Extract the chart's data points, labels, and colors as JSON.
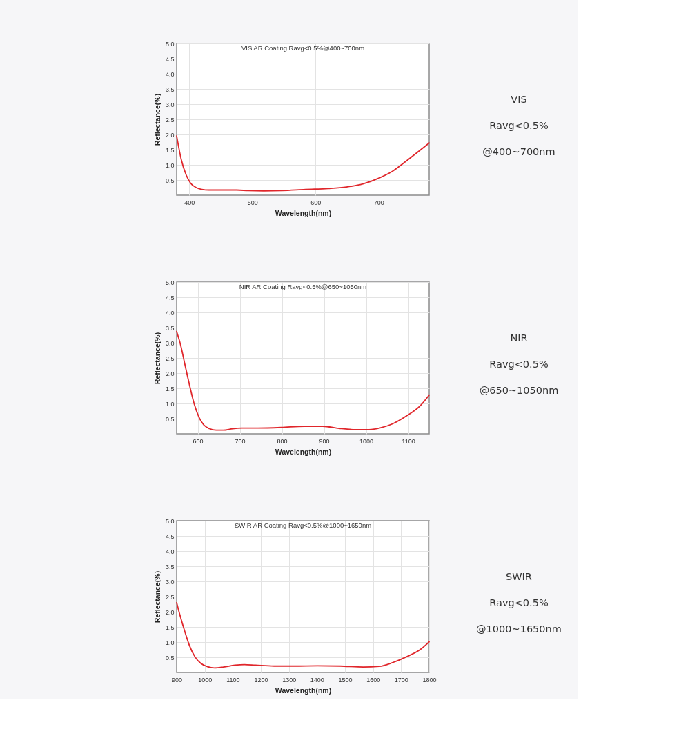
{
  "chart_data": [
    {
      "type": "line",
      "title": "VIS AR Coating Ravg<0.5%@400~700nm",
      "xlabel": "Wavelength(nm)",
      "ylabel": "Reflectance(%)",
      "x": [
        380,
        387,
        395,
        402,
        411,
        420,
        431,
        449,
        475,
        493,
        518,
        547,
        584,
        620,
        649,
        675,
        700,
        722,
        744,
        765,
        780
      ],
      "series": [
        {
          "color": "#e0262b",
          "values": [
            1.95,
            1.2,
            0.67,
            0.4,
            0.25,
            0.19,
            0.17,
            0.17,
            0.17,
            0.15,
            0.14,
            0.15,
            0.19,
            0.22,
            0.27,
            0.37,
            0.56,
            0.79,
            1.13,
            1.47,
            1.72
          ]
        }
      ],
      "xlim": [
        380,
        780
      ],
      "xticks": [
        400,
        500,
        600,
        700
      ],
      "ylim": [
        0,
        5
      ],
      "yticks": [
        0.5,
        {
          "value": 1,
          "label": "1.0"
        },
        1.5,
        {
          "value": 2,
          "label": "2.0"
        },
        2.5,
        {
          "value": 3,
          "label": "3.0"
        },
        3.5,
        {
          "value": 4,
          "label": "4.0"
        },
        4.5,
        {
          "value": 5,
          "label": "5.0"
        }
      ],
      "grid": true,
      "line_style": "solid",
      "annotations": [
        "VIS",
        "Ravg<0.5%",
        "@400~700nm"
      ]
    },
    {
      "type": "line",
      "title": "NIR AR Coating Ravg<0.5%@650~1050nm",
      "xlabel": "Wavelength(nm)",
      "ylabel": "Reflectance(%)",
      "x": [
        550,
        559,
        570,
        581,
        592,
        603,
        614,
        628,
        644,
        661,
        683,
        705,
        743,
        798,
        853,
        897,
        936,
        974,
        1007,
        1035,
        1063,
        1096,
        1129,
        1150
      ],
      "series": [
        {
          "color": "#e0262b",
          "values": [
            3.37,
            2.95,
            2.26,
            1.58,
            0.97,
            0.55,
            0.3,
            0.17,
            0.12,
            0.12,
            0.17,
            0.19,
            0.19,
            0.21,
            0.25,
            0.25,
            0.18,
            0.14,
            0.14,
            0.2,
            0.33,
            0.59,
            0.93,
            1.28
          ]
        }
      ],
      "xlim": [
        550,
        1150
      ],
      "xticks": [
        600,
        700,
        800,
        900,
        1000,
        1100
      ],
      "ylim": [
        0,
        5
      ],
      "yticks": [
        0.5,
        {
          "value": 1,
          "label": "1.0"
        },
        1.5,
        {
          "value": 2,
          "label": "2.0"
        },
        2.5,
        {
          "value": 3,
          "label": "3.0"
        },
        3.5,
        {
          "value": 4,
          "label": "4.0"
        },
        4.5,
        {
          "value": 5,
          "label": "5.0"
        }
      ],
      "grid": true,
      "line_style": "solid",
      "annotations": [
        "NIR",
        "Ravg<0.5%",
        "@650~1050nm"
      ]
    },
    {
      "type": "line",
      "title": "SWIR AR Coating Ravg<0.5%@1000~1650nm",
      "xlabel": "Wavelength(nm)",
      "ylabel": "Reflectance(%)",
      "x": [
        900,
        912,
        929,
        945,
        965,
        986,
        1010,
        1035,
        1067,
        1108,
        1141,
        1181,
        1247,
        1320,
        1402,
        1483,
        1565,
        1622,
        1671,
        1720,
        1769,
        1800
      ],
      "series": [
        {
          "color": "#e0262b",
          "values": [
            2.3,
            1.88,
            1.35,
            0.9,
            0.52,
            0.3,
            0.19,
            0.15,
            0.18,
            0.24,
            0.26,
            0.24,
            0.21,
            0.21,
            0.22,
            0.21,
            0.18,
            0.2,
            0.33,
            0.52,
            0.76,
            1.01
          ]
        }
      ],
      "xlim": [
        900,
        1800
      ],
      "xticks": [
        900,
        1000,
        1100,
        1200,
        1300,
        1400,
        1500,
        1600,
        1700,
        1800
      ],
      "ylim": [
        0,
        5
      ],
      "yticks": [
        0.5,
        {
          "value": 1,
          "label": "1.0"
        },
        1.5,
        {
          "value": 2,
          "label": "2.0"
        },
        2.5,
        {
          "value": 3,
          "label": "3.0"
        },
        3.5,
        {
          "value": 4,
          "label": "4.0"
        },
        4.5,
        {
          "value": 5,
          "label": "5.0"
        }
      ],
      "grid": true,
      "line_style": "solid",
      "annotations": [
        "SWIR",
        "Ravg<0.5%",
        "@1000~1650nm"
      ]
    }
  ]
}
